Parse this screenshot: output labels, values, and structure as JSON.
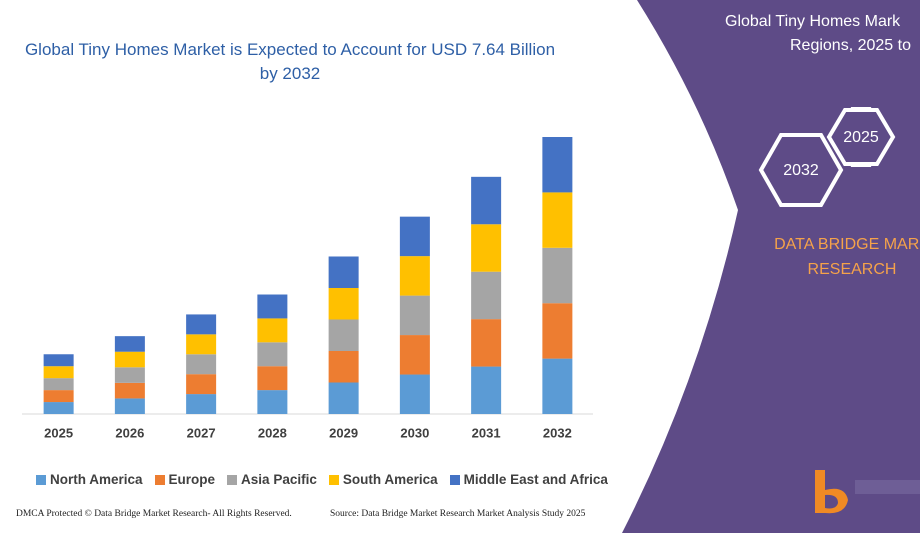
{
  "chart_data": {
    "type": "bar",
    "stacked": true,
    "title": "Global Tiny Homes Market is Expected to Account for USD 7.64 Billion by 2032",
    "categories": [
      "2025",
      "2026",
      "2027",
      "2028",
      "2029",
      "2030",
      "2031",
      "2032"
    ],
    "series": [
      {
        "name": "North America",
        "color": "#5b9bd5",
        "values": [
          0.33,
          0.43,
          0.55,
          0.66,
          0.87,
          1.09,
          1.31,
          1.53
        ]
      },
      {
        "name": "Europe",
        "color": "#ed7d31",
        "values": [
          0.33,
          0.43,
          0.55,
          0.66,
          0.87,
          1.09,
          1.31,
          1.53
        ]
      },
      {
        "name": "Asia Pacific",
        "color": "#a5a5a5",
        "values": [
          0.33,
          0.43,
          0.55,
          0.66,
          0.87,
          1.09,
          1.31,
          1.53
        ]
      },
      {
        "name": "South America",
        "color": "#ffc000",
        "values": [
          0.33,
          0.43,
          0.55,
          0.66,
          0.87,
          1.09,
          1.31,
          1.53
        ]
      },
      {
        "name": "Middle East and Africa",
        "color": "#4472c4",
        "values": [
          0.33,
          0.43,
          0.55,
          0.66,
          0.87,
          1.09,
          1.31,
          1.53
        ]
      }
    ],
    "legend": "bottom"
  },
  "panel": {
    "title_lines": [
      "Global Tiny Homes Mark",
      "Regions, 2025 to"
    ],
    "hexagons": [
      "2025",
      "2032"
    ],
    "brand_lines": [
      "DATA BRIDGE MARK",
      "RESEARCH"
    ]
  },
  "footer": {
    "left": "DMCA Protected © Data Bridge Market Research- All Rights Reserved.",
    "right": "Source: Data Bridge Market Research Market Analysis Study 2025"
  }
}
